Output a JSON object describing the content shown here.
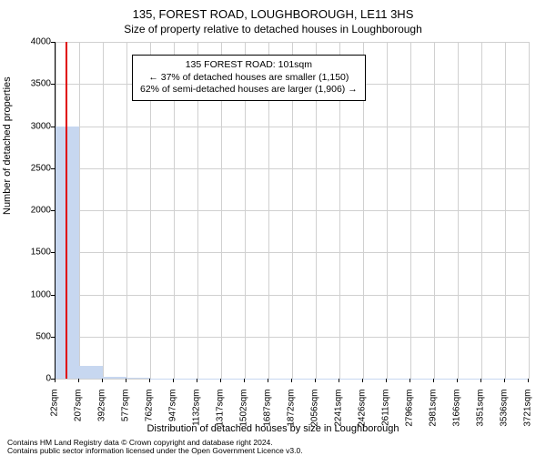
{
  "title": "135, FOREST ROAD, LOUGHBOROUGH, LE11 3HS",
  "subtitle": "Size of property relative to detached houses in Loughborough",
  "chart": {
    "type": "histogram",
    "ylabel": "Number of detached properties",
    "xlabel": "Distribution of detached houses by size in Loughborough",
    "ylim": [
      0,
      4000
    ],
    "yticks": [
      0,
      500,
      1000,
      1500,
      2000,
      2500,
      3000,
      3500,
      4000
    ],
    "xticks": [
      22,
      207,
      392,
      577,
      762,
      947,
      1132,
      1317,
      1502,
      1687,
      1872,
      2056,
      2241,
      2426,
      2611,
      2796,
      2981,
      3166,
      3351,
      3536,
      3721
    ],
    "xtick_suffix": "sqm",
    "highlight_x": 101,
    "highlight_color": "#e00000",
    "bar_color": "#c7d7f0",
    "grid_color": "#d0d0d0",
    "background_color": "#ffffff",
    "data": [
      {
        "xmid": 115,
        "count": 3000
      },
      {
        "xmid": 300,
        "count": 150
      },
      {
        "xmid": 485,
        "count": 20
      },
      {
        "xmid": 670,
        "count": 6
      },
      {
        "xmid": 855,
        "count": 4
      },
      {
        "xmid": 1040,
        "count": 3
      },
      {
        "xmid": 1225,
        "count": 2
      },
      {
        "xmid": 1410,
        "count": 2
      },
      {
        "xmid": 1595,
        "count": 2
      },
      {
        "xmid": 1780,
        "count": 1
      },
      {
        "xmid": 1965,
        "count": 1
      },
      {
        "xmid": 2149,
        "count": 1
      },
      {
        "xmid": 2334,
        "count": 1
      },
      {
        "xmid": 2519,
        "count": 1
      },
      {
        "xmid": 2704,
        "count": 1
      },
      {
        "xmid": 2889,
        "count": 1
      },
      {
        "xmid": 3074,
        "count": 1
      },
      {
        "xmid": 3259,
        "count": 1
      },
      {
        "xmid": 3444,
        "count": 1
      },
      {
        "xmid": 3629,
        "count": 1
      }
    ],
    "xrange": [
      22,
      3721
    ],
    "bar_width_units": 185
  },
  "info_box": {
    "line1": "135 FOREST ROAD: 101sqm",
    "line2": "← 37% of detached houses are smaller (1,150)",
    "line3": "62% of semi-detached houses are larger (1,906) →"
  },
  "footer": {
    "line1": "Contains HM Land Registry data © Crown copyright and database right 2024.",
    "line2": "Contains public sector information licensed under the Open Government Licence v3.0."
  }
}
